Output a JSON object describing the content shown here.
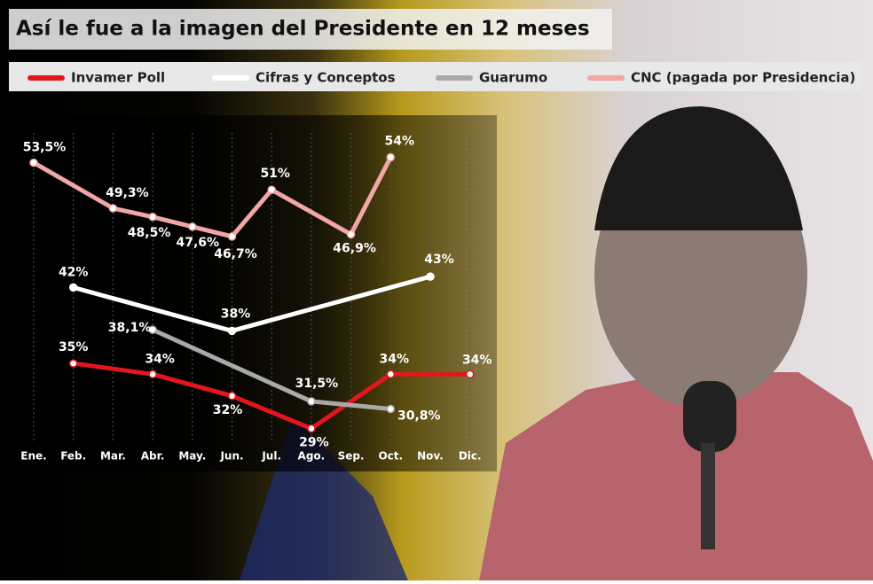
{
  "chart_data": {
    "type": "line",
    "title": "Así le fue a la imagen del Presidente en 12 meses",
    "categories": [
      "Ene.",
      "Feb.",
      "Mar.",
      "Abr.",
      "May.",
      "Jun.",
      "Jul.",
      "Ago.",
      "Sep.",
      "Oct.",
      "Nov.",
      "Dic."
    ],
    "ylim": [
      27,
      56
    ],
    "series": [
      {
        "name": "Invamer Poll",
        "color": "#e3161e",
        "values": [
          null,
          35,
          null,
          34,
          null,
          32,
          null,
          29,
          null,
          34,
          null,
          34
        ],
        "value_labels": [
          null,
          "35%",
          null,
          "34%",
          null,
          "32%",
          null,
          "29%",
          null,
          "34%",
          null,
          "34%"
        ]
      },
      {
        "name": "Cifras y Conceptos",
        "color": "#ffffff",
        "values": [
          null,
          42,
          null,
          null,
          null,
          38,
          null,
          null,
          null,
          null,
          43,
          null
        ],
        "value_labels": [
          null,
          "42%",
          null,
          null,
          null,
          "38%",
          null,
          null,
          null,
          null,
          "43%",
          null
        ]
      },
      {
        "name": "Guarumo",
        "color": "#a9a9a9",
        "values": [
          null,
          null,
          null,
          38.1,
          null,
          null,
          null,
          31.5,
          null,
          30.8,
          null,
          null
        ],
        "value_labels": [
          null,
          null,
          null,
          "38,1%",
          null,
          null,
          null,
          "31,5%",
          null,
          "30,8%",
          null,
          null
        ]
      },
      {
        "name": "CNC (pagada por Presidencia)",
        "color": "#f2a6a6",
        "values": [
          53.5,
          null,
          49.3,
          48.5,
          47.6,
          46.7,
          51,
          null,
          46.9,
          54,
          null,
          null
        ],
        "value_labels": [
          "53,5%",
          null,
          "49,3%",
          "48,5%",
          "47,6%",
          "46,7%",
          "51%",
          null,
          "46,9%",
          "54%",
          null,
          null
        ]
      }
    ]
  }
}
